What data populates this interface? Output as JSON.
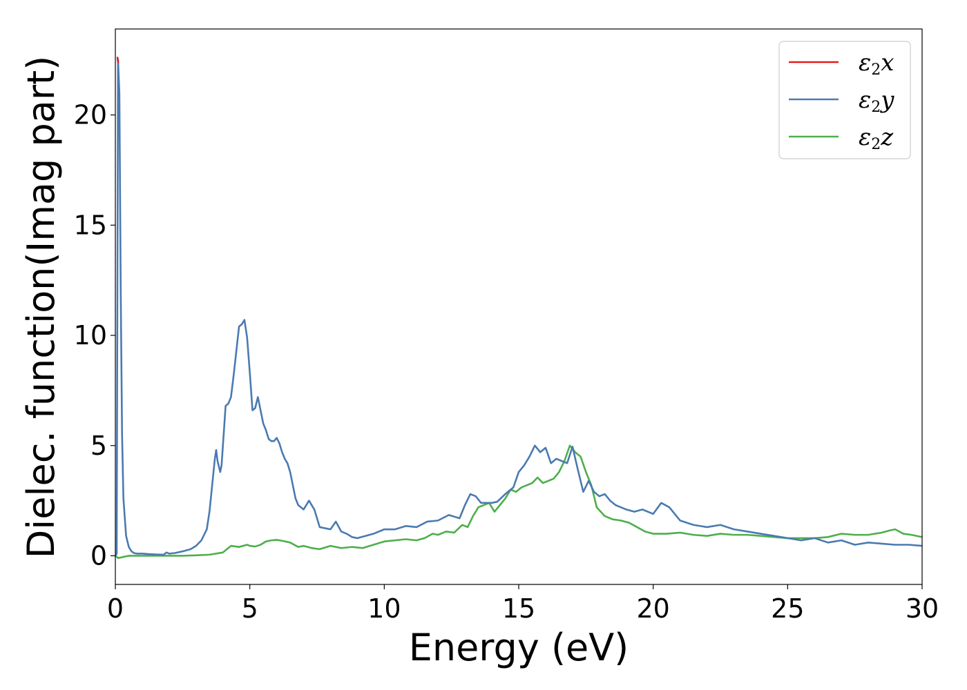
{
  "chart_data": {
    "type": "line",
    "title": "",
    "xlabel": "Energy (eV)",
    "ylabel": "Dielec. function(Imag part)",
    "xlim": [
      0,
      30
    ],
    "ylim": [
      -1.3,
      23.9
    ],
    "x_ticks": [
      0,
      5,
      10,
      15,
      20,
      25,
      30
    ],
    "y_ticks": [
      0,
      5,
      10,
      15,
      20
    ],
    "grid": false,
    "legend_position": "top-right",
    "series": [
      {
        "name": "ε2x",
        "legend_symbol": "ε",
        "legend_sub": "2",
        "legend_axis": "x",
        "color": "#e41a1c",
        "x": [
          0.08,
          0.1
        ],
        "y": [
          22.6,
          22.4
        ]
      },
      {
        "name": "ε2y",
        "legend_symbol": "ε",
        "legend_sub": "2",
        "legend_axis": "y",
        "color": "#4a7ab0",
        "x": [
          0.0,
          0.05,
          0.1,
          0.15,
          0.2,
          0.25,
          0.3,
          0.4,
          0.5,
          0.6,
          0.7,
          0.8,
          1.0,
          1.2,
          1.5,
          1.8,
          1.9,
          2.0,
          2.2,
          2.5,
          2.8,
          3.0,
          3.2,
          3.4,
          3.5,
          3.6,
          3.7,
          3.75,
          3.8,
          3.9,
          3.95,
          4.0,
          4.1,
          4.2,
          4.3,
          4.4,
          4.5,
          4.6,
          4.7,
          4.8,
          4.9,
          5.0,
          5.1,
          5.2,
          5.3,
          5.4,
          5.5,
          5.6,
          5.7,
          5.8,
          5.9,
          6.0,
          6.1,
          6.2,
          6.3,
          6.4,
          6.5,
          6.6,
          6.7,
          6.8,
          7.0,
          7.2,
          7.4,
          7.6,
          7.8,
          8.0,
          8.2,
          8.4,
          8.6,
          8.8,
          9.0,
          9.3,
          9.6,
          10.0,
          10.4,
          10.8,
          11.2,
          11.6,
          12.0,
          12.4,
          12.8,
          13.0,
          13.2,
          13.4,
          13.6,
          13.8,
          14.0,
          14.2,
          14.5,
          14.8,
          15.0,
          15.2,
          15.4,
          15.6,
          15.8,
          16.0,
          16.2,
          16.4,
          16.6,
          16.8,
          17.0,
          17.2,
          17.4,
          17.6,
          17.8,
          18.0,
          18.2,
          18.4,
          18.6,
          18.8,
          19.0,
          19.3,
          19.6,
          20.0,
          20.3,
          20.6,
          21.0,
          21.5,
          22.0,
          22.5,
          23.0,
          23.5,
          24.0,
          24.5,
          25.0,
          25.5,
          26.0,
          26.5,
          27.0,
          27.5,
          28.0,
          28.5,
          29.0,
          29.5,
          30.0
        ],
        "y": [
          0.0,
          0.1,
          22.5,
          21.0,
          12.0,
          5.5,
          2.6,
          0.9,
          0.4,
          0.2,
          0.12,
          0.1,
          0.1,
          0.08,
          0.06,
          0.05,
          0.15,
          0.1,
          0.12,
          0.2,
          0.3,
          0.45,
          0.7,
          1.2,
          2.0,
          3.2,
          4.4,
          4.8,
          4.3,
          3.8,
          4.1,
          5.0,
          6.8,
          6.9,
          7.2,
          8.2,
          9.3,
          10.4,
          10.5,
          10.7,
          9.9,
          8.3,
          6.6,
          6.7,
          7.2,
          6.6,
          6.0,
          5.7,
          5.3,
          5.2,
          5.2,
          5.35,
          5.1,
          4.7,
          4.4,
          4.2,
          3.8,
          3.2,
          2.6,
          2.3,
          2.1,
          2.5,
          2.1,
          1.3,
          1.25,
          1.2,
          1.55,
          1.1,
          1.0,
          0.85,
          0.8,
          0.9,
          1.0,
          1.2,
          1.2,
          1.35,
          1.3,
          1.55,
          1.6,
          1.85,
          1.7,
          2.3,
          2.8,
          2.7,
          2.4,
          2.4,
          2.4,
          2.45,
          2.8,
          3.1,
          3.8,
          4.1,
          4.5,
          5.0,
          4.7,
          4.9,
          4.2,
          4.4,
          4.3,
          4.2,
          4.95,
          3.9,
          2.9,
          3.4,
          2.9,
          2.7,
          2.8,
          2.5,
          2.3,
          2.2,
          2.1,
          2.0,
          2.1,
          1.9,
          2.4,
          2.2,
          1.6,
          1.4,
          1.3,
          1.4,
          1.2,
          1.1,
          1.0,
          0.9,
          0.8,
          0.7,
          0.8,
          0.6,
          0.7,
          0.5,
          0.6,
          0.55,
          0.5,
          0.5,
          0.45
        ]
      },
      {
        "name": "ε2z",
        "legend_symbol": "ε",
        "legend_sub": "2",
        "legend_axis": "z",
        "color": "#4daf4a",
        "x": [
          0.0,
          0.1,
          0.2,
          0.3,
          0.5,
          0.8,
          1.0,
          1.5,
          2.0,
          2.5,
          3.0,
          3.5,
          4.0,
          4.3,
          4.6,
          4.9,
          5.0,
          5.2,
          5.4,
          5.6,
          5.8,
          6.0,
          6.2,
          6.5,
          6.8,
          7.0,
          7.3,
          7.6,
          8.0,
          8.4,
          8.8,
          9.2,
          9.6,
          10.0,
          10.4,
          10.8,
          11.2,
          11.5,
          11.8,
          12.0,
          12.3,
          12.6,
          12.9,
          13.1,
          13.3,
          13.5,
          13.7,
          13.9,
          14.1,
          14.3,
          14.5,
          14.7,
          14.9,
          15.1,
          15.3,
          15.5,
          15.7,
          15.9,
          16.1,
          16.3,
          16.5,
          16.7,
          16.9,
          17.1,
          17.3,
          17.5,
          17.7,
          17.9,
          18.2,
          18.5,
          18.8,
          19.1,
          19.4,
          19.7,
          20.0,
          20.5,
          21.0,
          21.5,
          22.0,
          22.5,
          23.0,
          23.5,
          24.0,
          24.5,
          25.0,
          25.5,
          26.0,
          26.5,
          27.0,
          27.5,
          28.0,
          28.5,
          28.8,
          29.0,
          29.3,
          29.6,
          30.0
        ],
        "y": [
          0.0,
          -0.1,
          -0.08,
          -0.05,
          0.0,
          0.0,
          0.0,
          0.0,
          0.0,
          0.0,
          0.02,
          0.05,
          0.15,
          0.45,
          0.4,
          0.5,
          0.45,
          0.42,
          0.5,
          0.65,
          0.7,
          0.72,
          0.68,
          0.6,
          0.4,
          0.45,
          0.35,
          0.3,
          0.45,
          0.35,
          0.4,
          0.35,
          0.5,
          0.65,
          0.7,
          0.75,
          0.7,
          0.8,
          1.0,
          0.95,
          1.1,
          1.05,
          1.4,
          1.3,
          1.8,
          2.2,
          2.3,
          2.4,
          2.0,
          2.3,
          2.6,
          3.0,
          2.9,
          3.1,
          3.2,
          3.3,
          3.55,
          3.3,
          3.4,
          3.5,
          3.8,
          4.3,
          5.0,
          4.7,
          4.5,
          3.8,
          3.2,
          2.2,
          1.8,
          1.65,
          1.6,
          1.5,
          1.3,
          1.1,
          1.0,
          1.0,
          1.05,
          0.95,
          0.9,
          1.0,
          0.95,
          0.95,
          0.9,
          0.85,
          0.8,
          0.8,
          0.8,
          0.85,
          1.0,
          0.95,
          0.95,
          1.05,
          1.15,
          1.2,
          1.0,
          0.95,
          0.85
        ]
      }
    ]
  }
}
